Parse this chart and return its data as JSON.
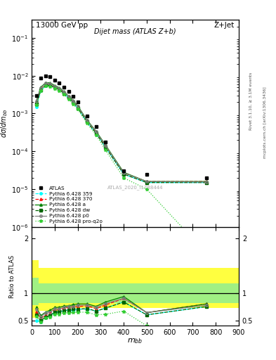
{
  "title_left": "13000 GeV pp",
  "title_right": "Z+Jet",
  "plot_title": "Dijet mass (ATLAS Z+b)",
  "watermark": "ATLAS_2020_I1788444",
  "right_label": "Rivet 3.1.10, ≥ 3.1M events",
  "right_label2": "mcplots.cern.ch [arXiv:1306.3436]",
  "atlas_x": [
    20,
    40,
    60,
    80,
    100,
    120,
    140,
    160,
    180,
    200,
    240,
    280,
    320,
    400,
    500,
    760
  ],
  "atlas_y": [
    0.003,
    0.0085,
    0.01,
    0.0095,
    0.0075,
    0.0065,
    0.005,
    0.0038,
    0.0028,
    0.002,
    0.00085,
    0.00045,
    0.00018,
    3e-05,
    2.5e-05,
    2e-05
  ],
  "py359_x": [
    20,
    40,
    60,
    80,
    100,
    120,
    140,
    160,
    180,
    200,
    240,
    280,
    320,
    400,
    500,
    760
  ],
  "py359_y": [
    0.0015,
    0.004,
    0.0055,
    0.0055,
    0.0048,
    0.0042,
    0.0034,
    0.0026,
    0.0019,
    0.0014,
    0.0006,
    0.0003,
    0.00013,
    2.5e-05,
    1.5e-05,
    1.5e-05
  ],
  "py370_x": [
    20,
    40,
    60,
    80,
    100,
    120,
    140,
    160,
    180,
    200,
    240,
    280,
    320,
    400,
    500,
    760
  ],
  "py370_y": [
    0.002,
    0.0045,
    0.006,
    0.006,
    0.0052,
    0.0045,
    0.0036,
    0.0028,
    0.0021,
    0.0015,
    0.00065,
    0.00032,
    0.00014,
    2.7e-05,
    1.6e-05,
    1.6e-05
  ],
  "pya_x": [
    20,
    40,
    60,
    80,
    100,
    120,
    140,
    160,
    180,
    200,
    240,
    280,
    320,
    400,
    500,
    760
  ],
  "pya_y": [
    0.0022,
    0.005,
    0.0065,
    0.0065,
    0.0055,
    0.0048,
    0.0038,
    0.0029,
    0.0022,
    0.0016,
    0.00068,
    0.00034,
    0.00015,
    2.8e-05,
    1.6e-05,
    1.6e-05
  ],
  "pydw_x": [
    20,
    40,
    60,
    80,
    100,
    120,
    140,
    160,
    180,
    200,
    240,
    280,
    320,
    400,
    500,
    760
  ],
  "pydw_y": [
    0.0018,
    0.0042,
    0.0056,
    0.0056,
    0.0049,
    0.0043,
    0.0034,
    0.0026,
    0.002,
    0.0014,
    0.00061,
    0.0003,
    0.00013,
    2.5e-05,
    1.5e-05,
    1.5e-05
  ],
  "pyp0_x": [
    20,
    40,
    60,
    80,
    100,
    120,
    140,
    160,
    180,
    200,
    240,
    280,
    320,
    400,
    500,
    760
  ],
  "pyp0_y": [
    0.0021,
    0.0048,
    0.0063,
    0.0062,
    0.0053,
    0.0046,
    0.0037,
    0.00285,
    0.0021,
    0.00155,
    0.00066,
    0.00033,
    0.000145,
    2.7e-05,
    1.6e-05,
    1.55e-05
  ],
  "pyproq2o_x": [
    20,
    40,
    60,
    80,
    100,
    120,
    140,
    160,
    180,
    200,
    240,
    280,
    320,
    400,
    500,
    760
  ],
  "pyproq2o_y": [
    0.0017,
    0.004,
    0.0054,
    0.0053,
    0.0046,
    0.004,
    0.0032,
    0.0024,
    0.0018,
    0.0013,
    0.00055,
    0.00027,
    0.00011,
    2e-05,
    1e-05,
    2e-07
  ],
  "ylim_main": [
    1e-06,
    0.3
  ],
  "ylim_ratio": [
    0.4,
    2.2
  ],
  "xlim": [
    0,
    900
  ],
  "band_x_edges": [
    0,
    30,
    120,
    620,
    760,
    900
  ],
  "yellow_lo": [
    0.55,
    0.68,
    0.72,
    0.72,
    0.72
  ],
  "yellow_hi": [
    1.6,
    1.45,
    1.45,
    1.45,
    1.45
  ],
  "green_lo": [
    0.78,
    0.82,
    0.82,
    0.82,
    0.82
  ],
  "green_hi": [
    1.28,
    1.18,
    1.18,
    1.18,
    1.18
  ]
}
